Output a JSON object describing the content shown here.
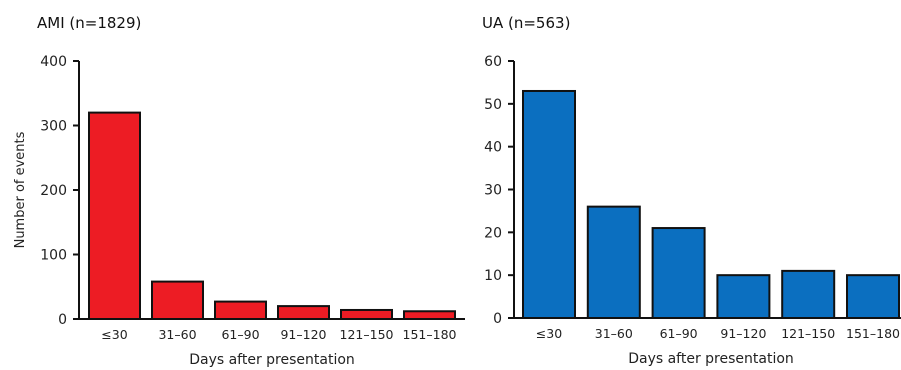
{
  "chart_data": [
    {
      "type": "bar",
      "title": "AMI (n=1829)",
      "xlabel": "Days after presentation",
      "ylabel": "Number of events",
      "categories": [
        "≤30",
        "31–60",
        "61–90",
        "91–120",
        "121–150",
        "151–180"
      ],
      "values": [
        320,
        58,
        27,
        20,
        14,
        12
      ],
      "ylim": [
        0,
        400
      ],
      "yticks": [
        0,
        100,
        200,
        300,
        400
      ],
      "bar_color": "#ed1c24",
      "grid": false
    },
    {
      "type": "bar",
      "title": "UA (n=563)",
      "xlabel": "Days after presentation",
      "ylabel": "",
      "categories": [
        "≤30",
        "31–60",
        "61–90",
        "91–120",
        "121–150",
        "151–180"
      ],
      "values": [
        53,
        26,
        21,
        10,
        11,
        10
      ],
      "ylim": [
        0,
        60
      ],
      "yticks": [
        0,
        10,
        20,
        30,
        40,
        50,
        60
      ],
      "bar_color": "#0b6fc0",
      "grid": false
    }
  ]
}
